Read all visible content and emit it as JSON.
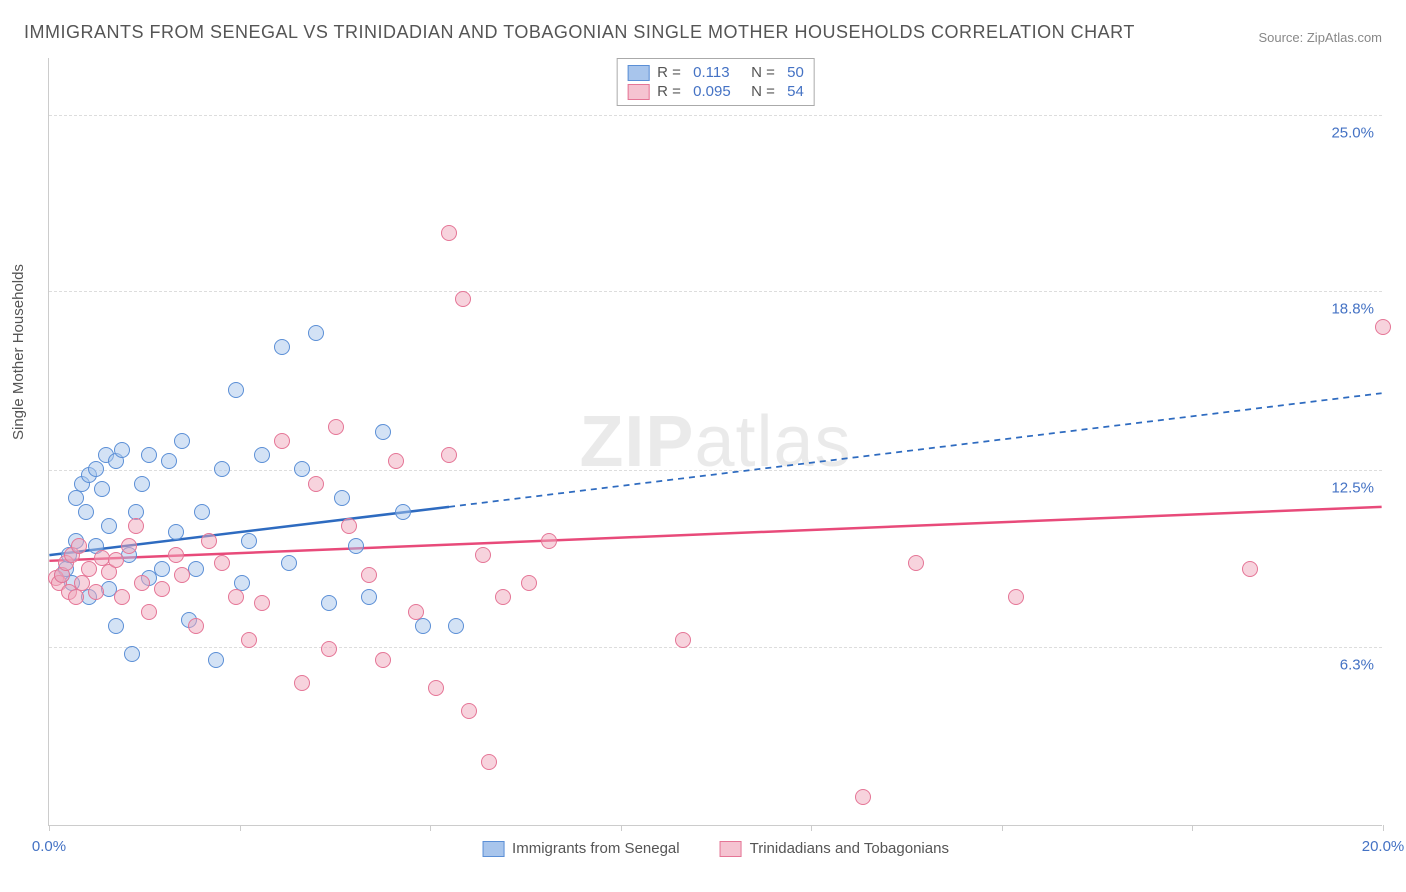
{
  "title": "IMMIGRANTS FROM SENEGAL VS TRINIDADIAN AND TOBAGONIAN SINGLE MOTHER HOUSEHOLDS CORRELATION CHART",
  "source": "Source: ZipAtlas.com",
  "y_axis_label": "Single Mother Households",
  "watermark_a": "ZIP",
  "watermark_b": "atlas",
  "chart": {
    "type": "scatter",
    "background_color": "#ffffff",
    "grid_color": "#dddddd",
    "axis_color": "#cccccc",
    "xlim": [
      0,
      20
    ],
    "ylim": [
      0,
      27
    ],
    "x_ticks": [
      0,
      2.86,
      5.71,
      8.57,
      11.43,
      14.29,
      17.14,
      20
    ],
    "x_tick_labels": {
      "0": "0.0%",
      "20": "20.0%"
    },
    "y_gridlines": [
      6.3,
      12.5,
      18.8,
      25.0
    ],
    "y_tick_labels": [
      "6.3%",
      "12.5%",
      "18.8%",
      "25.0%"
    ],
    "marker_radius": 8,
    "marker_opacity": 0.55,
    "series": [
      {
        "name": "Immigrants from Senegal",
        "color_fill": "#a8c5ec80",
        "color_border": "#5b8fd6",
        "swatch_fill": "#a8c5ec",
        "swatch_border": "#5b8fd6",
        "R": "0.113",
        "N": "50",
        "trend": {
          "x1": 0,
          "y1": 9.5,
          "x2_solid": 6.0,
          "y2_solid": 11.2,
          "x2": 20,
          "y2": 15.2,
          "color": "#2e6bc0",
          "width": 2.5
        },
        "points": [
          [
            0.2,
            8.8
          ],
          [
            0.25,
            9.0
          ],
          [
            0.3,
            9.5
          ],
          [
            0.35,
            8.5
          ],
          [
            0.4,
            10.0
          ],
          [
            0.4,
            11.5
          ],
          [
            0.5,
            12.0
          ],
          [
            0.55,
            11.0
          ],
          [
            0.6,
            12.3
          ],
          [
            0.6,
            8.0
          ],
          [
            0.7,
            12.5
          ],
          [
            0.7,
            9.8
          ],
          [
            0.8,
            11.8
          ],
          [
            0.85,
            13.0
          ],
          [
            0.9,
            10.5
          ],
          [
            0.9,
            8.3
          ],
          [
            1.0,
            12.8
          ],
          [
            1.0,
            7.0
          ],
          [
            1.1,
            13.2
          ],
          [
            1.2,
            9.5
          ],
          [
            1.25,
            6.0
          ],
          [
            1.3,
            11.0
          ],
          [
            1.4,
            12.0
          ],
          [
            1.5,
            8.7
          ],
          [
            1.5,
            13.0
          ],
          [
            1.7,
            9.0
          ],
          [
            1.8,
            12.8
          ],
          [
            1.9,
            10.3
          ],
          [
            2.0,
            13.5
          ],
          [
            2.1,
            7.2
          ],
          [
            2.2,
            9.0
          ],
          [
            2.3,
            11.0
          ],
          [
            2.5,
            5.8
          ],
          [
            2.6,
            12.5
          ],
          [
            2.8,
            15.3
          ],
          [
            2.9,
            8.5
          ],
          [
            3.0,
            10.0
          ],
          [
            3.2,
            13.0
          ],
          [
            3.5,
            16.8
          ],
          [
            3.6,
            9.2
          ],
          [
            3.8,
            12.5
          ],
          [
            4.0,
            17.3
          ],
          [
            4.2,
            7.8
          ],
          [
            4.4,
            11.5
          ],
          [
            4.6,
            9.8
          ],
          [
            4.8,
            8.0
          ],
          [
            5.0,
            13.8
          ],
          [
            5.3,
            11.0
          ],
          [
            5.6,
            7.0
          ],
          [
            6.1,
            7.0
          ]
        ]
      },
      {
        "name": "Trinidadians and Tobagonians",
        "color_fill": "#f0a8bb80",
        "color_border": "#e57596",
        "swatch_fill": "#f5c3d1",
        "swatch_border": "#e57596",
        "R": "0.095",
        "N": "54",
        "trend": {
          "x1": 0,
          "y1": 9.3,
          "x2_solid": 20,
          "y2_solid": 11.2,
          "x2": 20,
          "y2": 11.2,
          "color": "#e84a7a",
          "width": 2.5
        },
        "points": [
          [
            0.1,
            8.7
          ],
          [
            0.15,
            8.5
          ],
          [
            0.2,
            8.8
          ],
          [
            0.25,
            9.2
          ],
          [
            0.3,
            8.2
          ],
          [
            0.35,
            9.5
          ],
          [
            0.4,
            8.0
          ],
          [
            0.45,
            9.8
          ],
          [
            0.5,
            8.5
          ],
          [
            0.6,
            9.0
          ],
          [
            0.7,
            8.2
          ],
          [
            0.8,
            9.4
          ],
          [
            0.9,
            8.9
          ],
          [
            1.0,
            9.3
          ],
          [
            1.1,
            8.0
          ],
          [
            1.2,
            9.8
          ],
          [
            1.3,
            10.5
          ],
          [
            1.4,
            8.5
          ],
          [
            1.5,
            7.5
          ],
          [
            1.7,
            8.3
          ],
          [
            1.9,
            9.5
          ],
          [
            2.0,
            8.8
          ],
          [
            2.2,
            7.0
          ],
          [
            2.4,
            10.0
          ],
          [
            2.6,
            9.2
          ],
          [
            2.8,
            8.0
          ],
          [
            3.0,
            6.5
          ],
          [
            3.2,
            7.8
          ],
          [
            3.5,
            13.5
          ],
          [
            3.8,
            5.0
          ],
          [
            4.0,
            12.0
          ],
          [
            4.2,
            6.2
          ],
          [
            4.5,
            10.5
          ],
          [
            4.8,
            8.8
          ],
          [
            5.0,
            5.8
          ],
          [
            5.2,
            12.8
          ],
          [
            5.5,
            7.5
          ],
          [
            5.8,
            4.8
          ],
          [
            6.0,
            20.8
          ],
          [
            6.0,
            13.0
          ],
          [
            6.2,
            18.5
          ],
          [
            6.3,
            4.0
          ],
          [
            6.5,
            9.5
          ],
          [
            6.6,
            2.2
          ],
          [
            6.8,
            8.0
          ],
          [
            7.2,
            8.5
          ],
          [
            7.5,
            10.0
          ],
          [
            9.5,
            6.5
          ],
          [
            12.2,
            1.0
          ],
          [
            13.0,
            9.2
          ],
          [
            14.5,
            8.0
          ],
          [
            18.0,
            9.0
          ],
          [
            20.0,
            17.5
          ],
          [
            4.3,
            14.0
          ]
        ]
      }
    ]
  },
  "legend_bottom": [
    {
      "label": "Immigrants from Senegal"
    },
    {
      "label": "Trinidadians and Tobagonians"
    }
  ]
}
